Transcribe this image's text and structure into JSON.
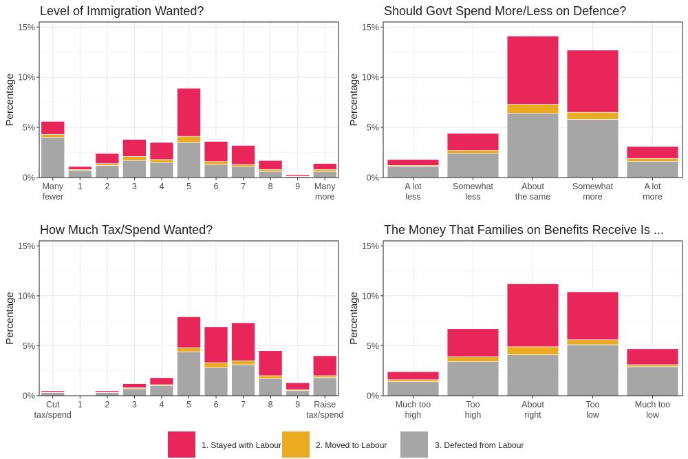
{
  "legend": {
    "items": [
      {
        "label": "1. Stayed with Labour",
        "color": "#e8265a"
      },
      {
        "label": "2. Moved to Labour",
        "color": "#e8ab21"
      },
      {
        "label": "3. Defected from Labour",
        "color": "#a6a6a6"
      }
    ]
  },
  "chart_data": [
    {
      "type": "bar",
      "stacked": true,
      "title": "Level of Immigration Wanted?",
      "ylabel": "Percentage",
      "xlabel": "",
      "ylim": [
        0,
        15.5
      ],
      "yticks": [
        "0%",
        "5%",
        "10%",
        "15%"
      ],
      "categories": [
        [
          "Many",
          "fewer"
        ],
        [
          "1"
        ],
        [
          "2"
        ],
        [
          "3"
        ],
        [
          "4"
        ],
        [
          "5"
        ],
        [
          "6"
        ],
        [
          "7"
        ],
        [
          "8"
        ],
        [
          "9"
        ],
        [
          "Many",
          "more"
        ]
      ],
      "series": [
        {
          "name": "3. Defected from Labour",
          "values": [
            4.0,
            0.7,
            1.2,
            1.7,
            1.5,
            3.5,
            1.3,
            1.1,
            0.6,
            0.1,
            0.6
          ]
        },
        {
          "name": "2. Moved to Labour",
          "values": [
            0.3,
            0.1,
            0.2,
            0.4,
            0.3,
            0.6,
            0.3,
            0.2,
            0.2,
            0.05,
            0.2
          ]
        },
        {
          "name": "1. Stayed with Labour",
          "values": [
            1.3,
            0.3,
            1.0,
            1.7,
            1.7,
            4.8,
            2.0,
            1.9,
            0.9,
            0.15,
            0.6
          ]
        }
      ]
    },
    {
      "type": "bar",
      "stacked": true,
      "title": "Should Govt Spend More/Less on Defence?",
      "ylabel": "Percentage",
      "xlabel": "",
      "ylim": [
        0,
        15.5
      ],
      "yticks": [
        "0%",
        "5%",
        "10%",
        "15%"
      ],
      "categories": [
        [
          "A lot",
          "less"
        ],
        [
          "Somewhat",
          "less"
        ],
        [
          "About",
          "the same"
        ],
        [
          "Somewhat",
          "more"
        ],
        [
          "A lot",
          "more"
        ]
      ],
      "series": [
        {
          "name": "3. Defected from Labour",
          "values": [
            1.1,
            2.4,
            6.4,
            5.8,
            1.6
          ]
        },
        {
          "name": "2. Moved to Labour",
          "values": [
            0.1,
            0.3,
            0.9,
            0.7,
            0.3
          ]
        },
        {
          "name": "1. Stayed with Labour",
          "values": [
            0.6,
            1.7,
            6.8,
            6.2,
            1.2
          ]
        }
      ]
    },
    {
      "type": "bar",
      "stacked": true,
      "title": "How Much Tax/Spend Wanted?",
      "ylabel": "Percentage",
      "xlabel": "",
      "ylim": [
        0,
        15.5
      ],
      "yticks": [
        "0%",
        "5%",
        "10%",
        "15%"
      ],
      "categories": [
        [
          "Cut",
          "tax/spend"
        ],
        [
          "1"
        ],
        [
          "2"
        ],
        [
          "3"
        ],
        [
          "4"
        ],
        [
          "5"
        ],
        [
          "6"
        ],
        [
          "7"
        ],
        [
          "8"
        ],
        [
          "9"
        ],
        [
          "Raise",
          "tax/spend"
        ]
      ],
      "series": [
        {
          "name": "3. Defected from Labour",
          "values": [
            0.3,
            0.05,
            0.3,
            0.7,
            1.0,
            4.4,
            2.8,
            3.1,
            1.7,
            0.5,
            1.8
          ]
        },
        {
          "name": "2. Moved to Labour",
          "values": [
            0.05,
            0.0,
            0.05,
            0.1,
            0.1,
            0.4,
            0.5,
            0.4,
            0.3,
            0.1,
            0.2
          ]
        },
        {
          "name": "1. Stayed with Labour",
          "values": [
            0.15,
            0.05,
            0.15,
            0.4,
            0.7,
            3.1,
            3.6,
            3.8,
            2.5,
            0.7,
            2.0
          ]
        }
      ]
    },
    {
      "type": "bar",
      "stacked": true,
      "title": "The Money That Families on Benefits Receive Is ...",
      "ylabel": "Percentage",
      "xlabel": "",
      "ylim": [
        0,
        15.5
      ],
      "yticks": [
        "0%",
        "5%",
        "10%",
        "15%"
      ],
      "categories": [
        [
          "Much too",
          "high"
        ],
        [
          "Too",
          "high"
        ],
        [
          "About",
          "right"
        ],
        [
          "Too",
          "low"
        ],
        [
          "Much too",
          "low"
        ]
      ],
      "series": [
        {
          "name": "3. Defected from Labour",
          "values": [
            1.4,
            3.4,
            4.1,
            5.1,
            2.9
          ]
        },
        {
          "name": "2. Moved to Labour",
          "values": [
            0.2,
            0.5,
            0.8,
            0.5,
            0.2
          ]
        },
        {
          "name": "1. Stayed with Labour",
          "values": [
            0.8,
            2.8,
            6.3,
            4.8,
            1.6
          ]
        }
      ]
    }
  ]
}
